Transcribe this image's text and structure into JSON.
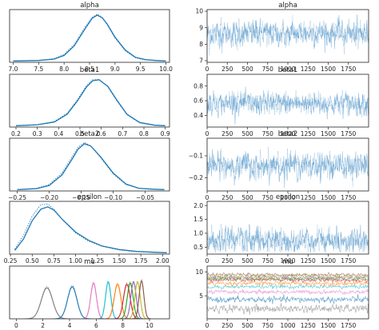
{
  "chart_data": [
    {
      "type": "line",
      "kind": "density",
      "title": "alpha",
      "xlim": [
        6.93,
        10.07
      ],
      "ticks": [
        7.0,
        7.5,
        8.0,
        8.5,
        9.0,
        9.5,
        10.0
      ],
      "tick_labels": [
        "7.0",
        "7.5",
        "8.0",
        "8.5",
        "9.0",
        "9.5",
        "10.0"
      ],
      "series": [
        {
          "style": "solid",
          "x": [
            7.0,
            7.5,
            7.8,
            8.0,
            8.2,
            8.4,
            8.55,
            8.65,
            8.75,
            8.85,
            9.0,
            9.2,
            9.4,
            9.6,
            9.8,
            10.0
          ],
          "values": [
            0.0,
            0.01,
            0.04,
            0.12,
            0.33,
            0.68,
            0.93,
            1.0,
            0.94,
            0.8,
            0.52,
            0.24,
            0.08,
            0.03,
            0.01,
            0.0
          ]
        },
        {
          "style": "dotted",
          "x": [
            7.0,
            7.5,
            7.8,
            8.0,
            8.2,
            8.4,
            8.55,
            8.65,
            8.75,
            8.85,
            9.0,
            9.2,
            9.4,
            9.6,
            9.8,
            10.0
          ],
          "values": [
            0.0,
            0.01,
            0.05,
            0.14,
            0.36,
            0.72,
            0.95,
            1.02,
            0.95,
            0.78,
            0.5,
            0.22,
            0.07,
            0.02,
            0.01,
            0.0
          ]
        }
      ]
    },
    {
      "type": "line",
      "kind": "trace",
      "title": "alpha",
      "xlim": [
        0,
        2000
      ],
      "ylim": [
        6.9,
        10.1
      ],
      "xticks": [
        0,
        250,
        500,
        750,
        1000,
        1250,
        1500,
        1750
      ],
      "xtick_labels": [
        "0",
        "250",
        "500",
        "750",
        "1000",
        "1250",
        "1500",
        "1750"
      ],
      "yticks": [
        7,
        8,
        9,
        10
      ],
      "ytick_labels": [
        "7",
        "8",
        "9",
        "10"
      ],
      "series": [
        {
          "style": "solid",
          "mean": 8.65,
          "spread": 0.38
        },
        {
          "style": "dotted",
          "mean": 8.65,
          "spread": 0.38
        }
      ]
    },
    {
      "type": "line",
      "kind": "density",
      "title": "beta1",
      "xlim": [
        0.17,
        0.92
      ],
      "ticks": [
        0.2,
        0.3,
        0.4,
        0.5,
        0.6,
        0.7,
        0.8,
        0.9
      ],
      "tick_labels": [
        "0.2",
        "0.3",
        "0.4",
        "0.5",
        "0.6",
        "0.7",
        "0.8",
        "0.9"
      ],
      "series": [
        {
          "style": "solid",
          "x": [
            0.2,
            0.3,
            0.38,
            0.44,
            0.49,
            0.53,
            0.56,
            0.59,
            0.63,
            0.67,
            0.72,
            0.78,
            0.85,
            0.9
          ],
          "values": [
            0.0,
            0.02,
            0.08,
            0.25,
            0.55,
            0.84,
            0.98,
            1.0,
            0.86,
            0.58,
            0.25,
            0.07,
            0.01,
            0.0
          ]
        },
        {
          "style": "dotted",
          "x": [
            0.2,
            0.3,
            0.38,
            0.44,
            0.49,
            0.53,
            0.56,
            0.59,
            0.63,
            0.67,
            0.72,
            0.78,
            0.85,
            0.9
          ],
          "values": [
            0.0,
            0.02,
            0.09,
            0.27,
            0.58,
            0.87,
            1.0,
            1.01,
            0.85,
            0.56,
            0.24,
            0.06,
            0.01,
            0.0
          ]
        }
      ]
    },
    {
      "type": "line",
      "kind": "trace",
      "title": "beta1",
      "xlim": [
        0,
        2000
      ],
      "ylim": [
        0.24,
        0.96
      ],
      "xticks": [
        0,
        250,
        500,
        750,
        1000,
        1250,
        1500,
        1750
      ],
      "xtick_labels": [
        "0",
        "250",
        "500",
        "750",
        "1000",
        "1250",
        "1500",
        "1750"
      ],
      "yticks": [
        0.4,
        0.6,
        0.8
      ],
      "ytick_labels": [
        "0.4",
        "0.6",
        "0.8"
      ],
      "series": [
        {
          "style": "solid",
          "mean": 0.56,
          "spread": 0.075
        },
        {
          "style": "dotted",
          "mean": 0.56,
          "spread": 0.075
        }
      ]
    },
    {
      "type": "line",
      "kind": "density",
      "title": "beta2",
      "xlim": [
        -0.262,
        -0.012
      ],
      "ticks": [
        -0.25,
        -0.2,
        -0.15,
        -0.1,
        -0.05
      ],
      "tick_labels": [
        "−0.25",
        "−0.20",
        "−0.15",
        "−0.10",
        "−0.05"
      ],
      "series": [
        {
          "style": "solid",
          "x": [
            -0.25,
            -0.22,
            -0.2,
            -0.18,
            -0.165,
            -0.155,
            -0.145,
            -0.135,
            -0.12,
            -0.1,
            -0.08,
            -0.06,
            -0.04,
            -0.02
          ],
          "values": [
            0.0,
            0.02,
            0.09,
            0.32,
            0.65,
            0.88,
            1.0,
            0.95,
            0.72,
            0.36,
            0.12,
            0.03,
            0.01,
            0.0
          ]
        },
        {
          "style": "dotted",
          "x": [
            -0.25,
            -0.22,
            -0.2,
            -0.18,
            -0.165,
            -0.155,
            -0.145,
            -0.135,
            -0.12,
            -0.1,
            -0.08,
            -0.06,
            -0.04,
            -0.02
          ],
          "values": [
            0.0,
            0.03,
            0.11,
            0.36,
            0.7,
            0.92,
            1.03,
            0.95,
            0.7,
            0.34,
            0.11,
            0.03,
            0.01,
            0.0
          ]
        }
      ]
    },
    {
      "type": "line",
      "kind": "trace",
      "title": "beta2",
      "xlim": [
        0,
        2000
      ],
      "ylim": [
        -0.26,
        -0.02
      ],
      "xticks": [
        0,
        250,
        500,
        750,
        1000,
        1250,
        1500,
        1750
      ],
      "xtick_labels": [
        "0",
        "250",
        "500",
        "750",
        "1000",
        "1250",
        "1500",
        "1750"
      ],
      "yticks": [
        -0.2,
        -0.1
      ],
      "ytick_labels": [
        "−0.2",
        "−0.1"
      ],
      "series": [
        {
          "style": "solid",
          "mean": -0.145,
          "spread": 0.028
        },
        {
          "style": "dotted",
          "mean": -0.145,
          "spread": 0.028
        }
      ]
    },
    {
      "type": "line",
      "kind": "density",
      "title": "epsilon",
      "xlim": [
        0.24,
        2.08
      ],
      "ticks": [
        0.25,
        0.5,
        0.75,
        1.0,
        1.25,
        1.5,
        1.75,
        2.0
      ],
      "tick_labels": [
        "0.25",
        "0.50",
        "0.75",
        "1.00",
        "1.25",
        "1.50",
        "1.75",
        "2.00"
      ],
      "series": [
        {
          "style": "solid",
          "x": [
            0.3,
            0.4,
            0.5,
            0.6,
            0.68,
            0.75,
            0.85,
            1.0,
            1.15,
            1.3,
            1.5,
            1.7,
            1.9,
            2.05
          ],
          "values": [
            0.05,
            0.3,
            0.7,
            0.95,
            1.0,
            0.93,
            0.72,
            0.45,
            0.27,
            0.15,
            0.07,
            0.03,
            0.01,
            0.0
          ]
        },
        {
          "style": "dotted",
          "x": [
            0.3,
            0.4,
            0.5,
            0.6,
            0.68,
            0.75,
            0.85,
            1.0,
            1.15,
            1.3,
            1.5,
            1.7,
            1.9,
            2.05
          ],
          "values": [
            0.08,
            0.38,
            0.8,
            1.05,
            1.06,
            0.95,
            0.72,
            0.43,
            0.25,
            0.14,
            0.06,
            0.02,
            0.01,
            0.0
          ]
        }
      ]
    },
    {
      "type": "line",
      "kind": "trace",
      "title": "epsilon",
      "xlim": [
        0,
        2000
      ],
      "ylim": [
        0.25,
        2.15
      ],
      "xticks": [
        0,
        250,
        500,
        750,
        1000,
        1250,
        1500,
        1750
      ],
      "xtick_labels": [
        "0",
        "250",
        "500",
        "750",
        "1000",
        "1250",
        "1500",
        "1750"
      ],
      "yticks": [
        0.5,
        1.0,
        1.5,
        2.0
      ],
      "ytick_labels": [
        "0.5",
        "1.0",
        "1.5",
        "2.0"
      ],
      "series": [
        {
          "style": "solid",
          "mean": 0.72,
          "spread": 0.22
        },
        {
          "style": "dotted",
          "mean": 0.72,
          "spread": 0.22
        }
      ]
    },
    {
      "type": "line",
      "kind": "density-multi",
      "title": "mu",
      "xlim": [
        -0.5,
        11.5
      ],
      "ticks": [
        0,
        2,
        4,
        6,
        8,
        10
      ],
      "tick_labels": [
        "0",
        "2",
        "4",
        "6",
        "8",
        "10"
      ],
      "components": [
        {
          "mean": 2.3,
          "sd": 0.42,
          "color": "#7f7f7f"
        },
        {
          "mean": 4.2,
          "sd": 0.35,
          "color": "#1f77b4"
        },
        {
          "mean": 5.8,
          "sd": 0.22,
          "color": "#e377c2"
        },
        {
          "mean": 6.9,
          "sd": 0.2,
          "color": "#17becf"
        },
        {
          "mean": 7.6,
          "sd": 0.25,
          "color": "#ff7f0e"
        },
        {
          "mean": 8.3,
          "sd": 0.25,
          "color": "#d62728"
        },
        {
          "mean": 8.55,
          "sd": 0.22,
          "color": "#2ca02c"
        },
        {
          "mean": 8.8,
          "sd": 0.2,
          "color": "#9467bd"
        },
        {
          "mean": 9.1,
          "sd": 0.2,
          "color": "#bcbd22"
        },
        {
          "mean": 9.4,
          "sd": 0.18,
          "color": "#8c564b"
        }
      ]
    },
    {
      "type": "line",
      "kind": "trace-multi",
      "title": "mu",
      "xlim": [
        0,
        2000
      ],
      "ylim": [
        0.2,
        11.2
      ],
      "xticks": [
        0,
        250,
        500,
        750,
        1000,
        1250,
        1500,
        1750
      ],
      "xtick_labels": [
        "0",
        "250",
        "500",
        "750",
        "1000",
        "1250",
        "1500",
        "1750"
      ],
      "yticks": [
        0,
        5,
        10
      ],
      "ytick_labels": [
        "0",
        "5",
        "10"
      ],
      "components": [
        {
          "mean": 2.3,
          "sd": 0.42,
          "color": "#7f7f7f"
        },
        {
          "mean": 4.2,
          "sd": 0.35,
          "color": "#1f77b4"
        },
        {
          "mean": 5.8,
          "sd": 0.22,
          "color": "#e377c2"
        },
        {
          "mean": 6.9,
          "sd": 0.2,
          "color": "#17becf"
        },
        {
          "mean": 7.6,
          "sd": 0.25,
          "color": "#ff7f0e"
        },
        {
          "mean": 8.3,
          "sd": 0.25,
          "color": "#d62728"
        },
        {
          "mean": 8.55,
          "sd": 0.22,
          "color": "#2ca02c"
        },
        {
          "mean": 8.8,
          "sd": 0.2,
          "color": "#9467bd"
        },
        {
          "mean": 9.1,
          "sd": 0.2,
          "color": "#bcbd22"
        },
        {
          "mean": 9.4,
          "sd": 0.18,
          "color": "#8c564b"
        }
      ]
    }
  ],
  "colors": {
    "primary": "#1f77b4",
    "trace_light": "#7fb1d9"
  }
}
